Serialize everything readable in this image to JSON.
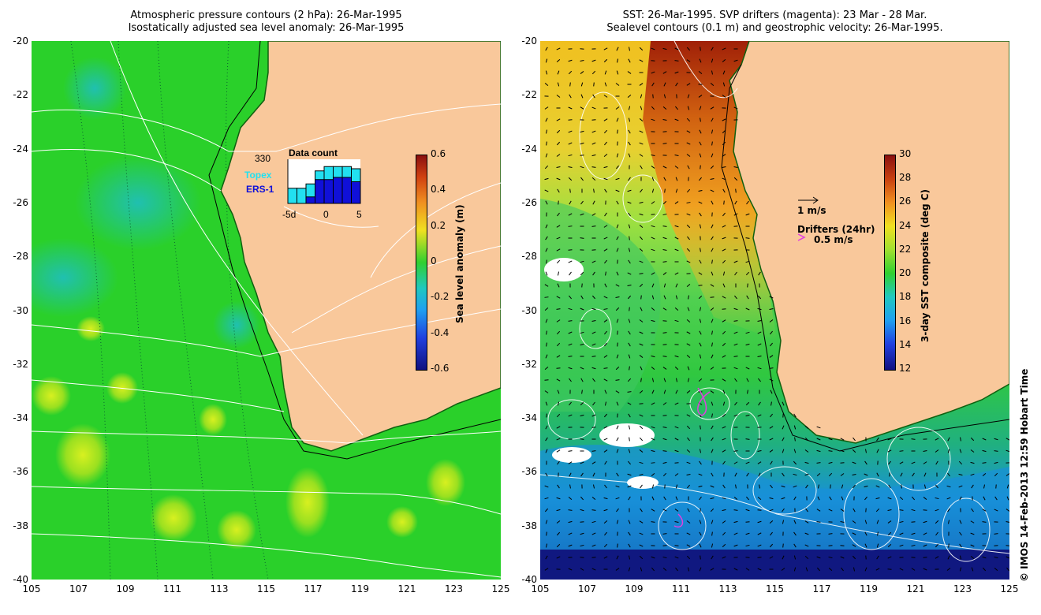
{
  "left_panel": {
    "title_line1": "Atmospheric pressure contours (2 hPa): 26-Mar-1995",
    "title_line2": "Isostatically adjusted sea level anomaly: 26-Mar-1995",
    "colorbar_label": "Sea level anomaly (m)",
    "colorbar_ticks": [
      "0.6",
      "0.4",
      "0.2",
      "0",
      "-0.2",
      "-0.4",
      "-0.6"
    ],
    "inset": {
      "title": "Data count",
      "max_count": "330",
      "topex_label": "Topex",
      "ers_label": "ERS-1",
      "x_ticks": [
        "-5d",
        "0",
        "5"
      ],
      "topex_color": "#22e0f0",
      "ers_color": "#1010d8",
      "topex_counts": [
        0.35,
        0.35,
        0.45,
        0.75,
        0.85,
        0.85,
        0.85,
        0.8
      ],
      "ers_counts": [
        0.0,
        0.0,
        0.15,
        0.55,
        0.55,
        0.6,
        0.6,
        0.5
      ]
    }
  },
  "right_panel": {
    "title_line1": "SST: 26-Mar-1995. SVP drifters (magenta): 23 Mar - 28 Mar.",
    "title_line2": "Sealevel contours (0.1 m) and geostrophic velocity: 26-Mar-1995.",
    "colorbar_label": "3-day SST composite (deg C)",
    "colorbar_ticks": [
      "30",
      "28",
      "26",
      "24",
      "22",
      "20",
      "18",
      "16",
      "14",
      "12"
    ],
    "velocity_legend": "1 m/s",
    "drifter_legend_title": "Drifters (24hr)",
    "drifter_legend_value": "0.5 m/s",
    "drifter_color": "#e040e0"
  },
  "axes": {
    "y_ticks": [
      "-20",
      "-22",
      "-24",
      "-26",
      "-28",
      "-30",
      "-32",
      "-34",
      "-36",
      "-38",
      "-40"
    ],
    "x_ticks": [
      "105",
      "107",
      "109",
      "111",
      "113",
      "115",
      "117",
      "119",
      "121",
      "123",
      "125"
    ]
  },
  "colors": {
    "land": "#f9c89b",
    "anomaly_green": "#22cc22",
    "sst_blue": "#1533aa"
  },
  "credit": "© IMOS 14-Feb-2013 12:59 Hobart Time"
}
